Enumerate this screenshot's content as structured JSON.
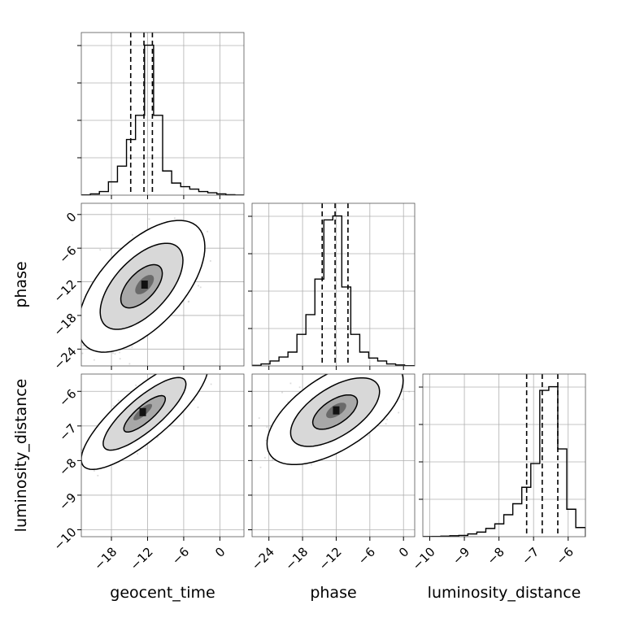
{
  "colors": {
    "background": "#ffffff",
    "line": "#000000",
    "grid": "#b0b0b0",
    "scatter": "#9a9a9a",
    "density_levels": [
      "#d8d8d8",
      "#a8a8a8",
      "#6a6a6a",
      "#111111"
    ]
  },
  "chart_data": {
    "type": "corner",
    "parameters": [
      {
        "name": "geocent_time",
        "label": "geocent_time",
        "range": [
          -23,
          4
        ],
        "ticks": [
          -18,
          -12,
          -6,
          0
        ],
        "tick_labels": [
          "−18",
          "−12",
          "−6",
          "0"
        ],
        "quantiles": [
          -14.8,
          -12.6,
          -11.2
        ],
        "histogram": {
          "edges": [
            -23,
            -21.5,
            -20,
            -18.5,
            -17,
            -15.5,
            -14,
            -12.5,
            -11,
            -9.5,
            -8,
            -6.5,
            -5,
            -3.5,
            -2,
            -0.5,
            1,
            2.5,
            4
          ],
          "counts": [
            0.1,
            0.5,
            1.5,
            5.5,
            12,
            23,
            33,
            62,
            33,
            10,
            5,
            3.5,
            2.5,
            1.5,
            1,
            0.5,
            0.2,
            0.05
          ]
        }
      },
      {
        "name": "phase",
        "label": "phase",
        "range": [
          -27,
          2
        ],
        "ticks": [
          -24,
          -18,
          -12,
          -6,
          0
        ],
        "tick_labels": [
          "−24",
          "−18",
          "−12",
          "−6",
          "0"
        ],
        "quantiles": [
          -14.5,
          -12.2,
          -9.9
        ],
        "histogram": {
          "edges": [
            -27,
            -25.4,
            -23.8,
            -22.2,
            -20.6,
            -19,
            -17.4,
            -15.8,
            -14.2,
            -12.6,
            -11,
            -9.4,
            -7.8,
            -6.2,
            -4.6,
            -3,
            -1.4,
            0.2,
            2
          ],
          "counts": [
            0.3,
            1,
            2.5,
            4.5,
            7,
            16,
            26,
            44,
            74,
            76,
            40,
            16,
            7,
            4,
            2.5,
            1,
            0.5,
            0.1
          ]
        }
      },
      {
        "name": "luminosity_distance",
        "label": "luminosity_distance",
        "range": [
          -10.2,
          -5.5
        ],
        "ticks": [
          -10,
          -9,
          -8,
          -7,
          -6
        ],
        "tick_labels": [
          "−10",
          "−9",
          "−8",
          "−7",
          "−6"
        ],
        "quantiles": [
          -7.2,
          -6.75,
          -6.3
        ],
        "histogram": {
          "edges": [
            -10.2,
            -9.94,
            -9.68,
            -9.42,
            -9.16,
            -8.9,
            -8.64,
            -8.38,
            -8.12,
            -7.86,
            -7.6,
            -7.34,
            -7.08,
            -6.82,
            -6.56,
            -6.3,
            -6.04,
            -5.78,
            -5.5
          ],
          "counts": [
            0.1,
            0.15,
            0.3,
            0.5,
            0.7,
            1.5,
            2.5,
            4.5,
            7,
            12,
            18,
            27,
            40,
            80,
            82,
            48,
            15,
            5
          ]
        }
      }
    ],
    "pairs": [
      {
        "x": "geocent_time",
        "y": "phase",
        "mean": [
          -13,
          -12.8
        ],
        "cov": [
          [
            12,
            8
          ],
          [
            8,
            15
          ]
        ],
        "peak": [
          -12.5,
          -12.5
        ],
        "contour_levels": [
          0.39,
          0.86,
          0.99
        ]
      },
      {
        "x": "geocent_time",
        "y": "luminosity_distance",
        "mean": [
          -12.5,
          -6.65
        ],
        "cov": [
          [
            12,
            1.5
          ],
          [
            1.5,
            0.28
          ]
        ],
        "peak": [
          -12.8,
          -6.6
        ],
        "contour_levels": [
          0.39,
          0.86,
          0.99
        ]
      },
      {
        "x": "phase",
        "y": "luminosity_distance",
        "mean": [
          -12.2,
          -6.6
        ],
        "cov": [
          [
            16,
            1.2
          ],
          [
            1.2,
            0.25
          ]
        ],
        "peak": [
          -12,
          -6.55
        ],
        "contour_levels": [
          0.39,
          0.86,
          0.99
        ]
      }
    ],
    "grid": true,
    "scatter_points_per_panel": 2500
  }
}
